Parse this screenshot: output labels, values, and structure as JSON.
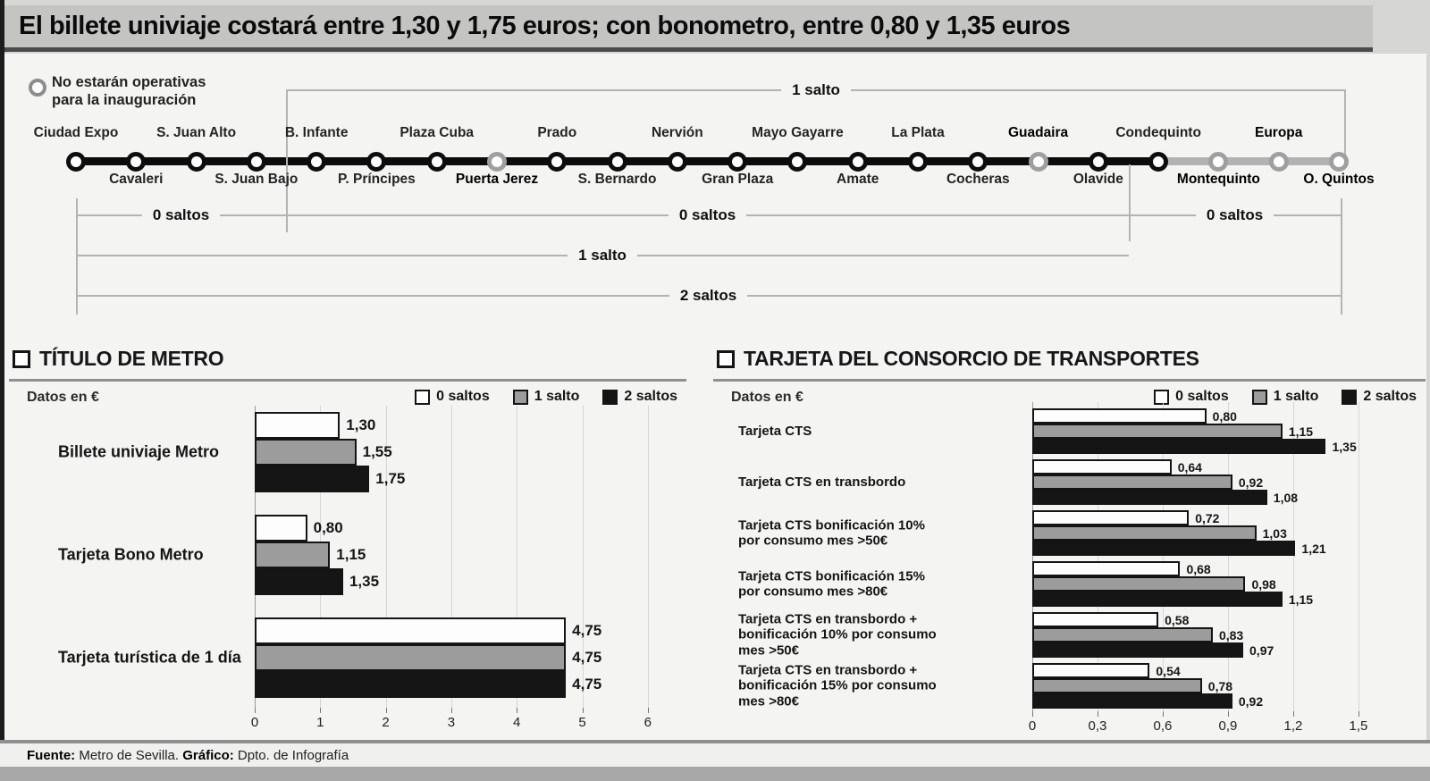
{
  "title": "El billete univiaje costará entre 1,30 y 1,75 euros; con bonometro, entre 0,80 y 1,35 euros",
  "diagram": {
    "legend_note_lines": [
      "No estarán operativas",
      "para la inauguración"
    ],
    "stations": [
      {
        "name": "Ciudad Expo",
        "side": "top",
        "open": false
      },
      {
        "name": "Cavaleri",
        "side": "bottom",
        "open": false
      },
      {
        "name": "S. Juan Alto",
        "side": "top",
        "open": false
      },
      {
        "name": "S. Juan Bajo",
        "side": "bottom",
        "open": false
      },
      {
        "name": "B. Infante",
        "side": "top",
        "open": false
      },
      {
        "name": "P. Príncipes",
        "side": "bottom",
        "open": false
      },
      {
        "name": "Plaza Cuba",
        "side": "top",
        "open": false
      },
      {
        "name": "Puerta Jerez",
        "side": "bottom",
        "open": true
      },
      {
        "name": "Prado",
        "side": "top",
        "open": false
      },
      {
        "name": "S. Bernardo",
        "side": "bottom",
        "open": false
      },
      {
        "name": "Nervión",
        "side": "top",
        "open": false
      },
      {
        "name": "Gran Plaza",
        "side": "bottom",
        "open": false
      },
      {
        "name": "Mayo Gayarre",
        "side": "top",
        "open": false
      },
      {
        "name": "Amate",
        "side": "bottom",
        "open": false
      },
      {
        "name": "La Plata",
        "side": "top",
        "open": false
      },
      {
        "name": "Cocheras",
        "side": "bottom",
        "open": false
      },
      {
        "name": "Guadaira",
        "side": "top",
        "open": true
      },
      {
        "name": "Olavide",
        "side": "bottom",
        "open": false
      },
      {
        "name": "Condequinto",
        "side": "top",
        "open": false
      },
      {
        "name": "Montequinto",
        "side": "bottom",
        "open": true
      },
      {
        "name": "Europa",
        "side": "top",
        "open": true
      },
      {
        "name": "O. Quintos",
        "side": "bottom",
        "open": true
      }
    ],
    "zones": {
      "top": "1 salto",
      "zone_a": "0 saltos",
      "zone_b": "0 saltos",
      "zone_c": "0 saltos",
      "row1": "1 salto",
      "row2": "2 saltos"
    }
  },
  "chart_data": [
    {
      "type": "bar",
      "orientation": "horizontal",
      "title": "TÍTULO DE METRO",
      "units_note": "Datos en €",
      "legend": [
        "0 saltos",
        "1 salto",
        "2 saltos"
      ],
      "legend_position": "top-right",
      "grid": true,
      "categories": [
        "Billete univiaje Metro",
        "Tarjeta Bono Metro",
        "Tarjeta turística de 1 día"
      ],
      "series": [
        {
          "name": "0 saltos",
          "values": [
            1.3,
            0.8,
            4.75
          ],
          "labels": [
            "1,30",
            "0,80",
            "4,75"
          ]
        },
        {
          "name": "1 salto",
          "values": [
            1.55,
            1.15,
            4.75
          ],
          "labels": [
            "1,55",
            "1,15",
            "4,75"
          ]
        },
        {
          "name": "2 saltos",
          "values": [
            1.75,
            1.35,
            4.75
          ],
          "labels": [
            "1,75",
            "1,35",
            "4,75"
          ]
        }
      ],
      "xlim": [
        0,
        6
      ],
      "ticks": [
        "0",
        "1",
        "2",
        "3",
        "4",
        "5",
        "6"
      ]
    },
    {
      "type": "bar",
      "orientation": "horizontal",
      "title": "TARJETA DEL CONSORCIO DE TRANSPORTES",
      "units_note": "Datos en €",
      "legend": [
        "0 saltos",
        "1 salto",
        "2 saltos"
      ],
      "legend_position": "top-right",
      "grid": true,
      "categories": [
        "Tarjeta CTS",
        "Tarjeta CTS en transbordo",
        "Tarjeta CTS bonificación 10%\npor consumo mes >50€",
        "Tarjeta CTS bonificación 15%\npor consumo mes >80€",
        "Tarjeta CTS en transbordo +\nbonificación 10% por consumo\nmes >50€",
        "Tarjeta CTS en transbordo +\nbonificación 15% por consumo\nmes >80€"
      ],
      "series": [
        {
          "name": "0 saltos",
          "values": [
            0.8,
            0.64,
            0.72,
            0.68,
            0.58,
            0.54
          ],
          "labels": [
            "0,80",
            "0,64",
            "0,72",
            "0,68",
            "0,58",
            "0,54"
          ]
        },
        {
          "name": "1 salto",
          "values": [
            1.15,
            0.92,
            1.03,
            0.98,
            0.83,
            0.78
          ],
          "labels": [
            "1,15",
            "0,92",
            "1,03",
            "0,98",
            "0,83",
            "0,78"
          ]
        },
        {
          "name": "2 saltos",
          "values": [
            1.35,
            1.08,
            1.21,
            1.15,
            0.97,
            0.92
          ],
          "labels": [
            "1,35",
            "1,08",
            "1,21",
            "1,15",
            "0,97",
            "0,92"
          ]
        }
      ],
      "xlim": [
        0,
        1.5
      ],
      "ticks": [
        "0",
        "0,3",
        "0,6",
        "0,9",
        "1,2",
        "1,5"
      ]
    }
  ],
  "footer": {
    "source_label": "Fuente:",
    "source": "Metro de Sevilla.",
    "credit_label": "Gráfico:",
    "credit": "Dpto. de Infografía"
  }
}
